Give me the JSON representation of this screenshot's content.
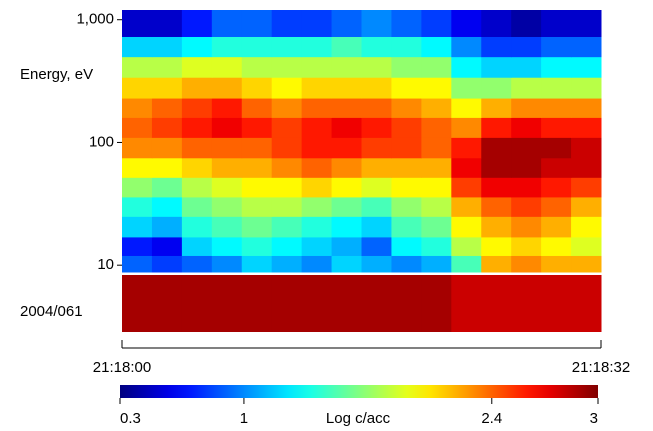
{
  "chart_data": {
    "type": "heatmap",
    "y_label": "Energy, eV",
    "date_label": "2004/061",
    "y_scale": "log",
    "colormap": "jet",
    "xlim": [
      0,
      32
    ],
    "xticks": [
      {
        "value": 0,
        "label": "21:18:00"
      },
      {
        "value": 32,
        "label": "21:18:32"
      }
    ],
    "ylim": [
      8.8,
      1200
    ],
    "yticks": [
      10,
      100,
      {
        "value": 1000,
        "label": "1,000"
      }
    ],
    "x_edges": [
      0,
      2,
      4,
      6,
      8,
      10,
      12,
      14,
      16,
      18,
      20,
      22,
      24,
      26,
      28,
      30,
      32
    ],
    "y_edges": [
      8.8,
      12,
      17,
      25,
      36,
      52,
      75,
      110,
      160,
      230,
      340,
      500,
      730,
      1200
    ],
    "values": [
      [
        0.9,
        0.8,
        0.9,
        1.0,
        1.2,
        1.1,
        1.0,
        1.2,
        1.1,
        1.0,
        1.1,
        1.5,
        2.2,
        2.3,
        2.2,
        2.2
      ],
      [
        0.7,
        0.6,
        1.2,
        1.3,
        1.4,
        1.3,
        1.2,
        1.1,
        0.9,
        1.3,
        1.4,
        1.8,
        2.0,
        2.1,
        2.0,
        1.9
      ],
      [
        1.2,
        1.1,
        1.4,
        1.5,
        1.6,
        1.5,
        1.4,
        1.3,
        1.2,
        1.5,
        1.6,
        2.0,
        2.2,
        2.3,
        2.2,
        2.0
      ],
      [
        1.4,
        1.3,
        1.6,
        1.7,
        1.8,
        1.8,
        1.7,
        1.6,
        1.5,
        1.7,
        1.8,
        2.2,
        2.4,
        2.5,
        2.4,
        2.2
      ],
      [
        1.7,
        1.6,
        1.8,
        1.9,
        2.0,
        2.0,
        2.1,
        2.0,
        1.9,
        2.0,
        2.0,
        2.5,
        2.7,
        2.7,
        2.6,
        2.5
      ],
      [
        2.0,
        2.0,
        2.1,
        2.2,
        2.2,
        2.3,
        2.4,
        2.3,
        2.2,
        2.2,
        2.2,
        2.7,
        2.9,
        2.9,
        2.8,
        2.8
      ],
      [
        2.3,
        2.3,
        2.4,
        2.4,
        2.4,
        2.5,
        2.6,
        2.6,
        2.5,
        2.5,
        2.4,
        2.6,
        2.9,
        2.9,
        2.9,
        2.8
      ],
      [
        2.4,
        2.5,
        2.6,
        2.7,
        2.6,
        2.5,
        2.6,
        2.7,
        2.6,
        2.5,
        2.4,
        2.3,
        2.6,
        2.7,
        2.6,
        2.6
      ],
      [
        2.3,
        2.4,
        2.5,
        2.6,
        2.4,
        2.3,
        2.4,
        2.4,
        2.4,
        2.3,
        2.2,
        2.0,
        2.2,
        2.3,
        2.3,
        2.3
      ],
      [
        2.1,
        2.1,
        2.2,
        2.2,
        2.1,
        2.0,
        2.1,
        2.1,
        2.1,
        2.0,
        2.0,
        1.7,
        1.7,
        1.8,
        1.8,
        1.8
      ],
      [
        1.8,
        1.8,
        1.9,
        1.9,
        1.8,
        1.8,
        1.8,
        1.8,
        1.8,
        1.7,
        1.7,
        1.3,
        1.2,
        1.2,
        1.3,
        1.3
      ],
      [
        1.2,
        1.2,
        1.3,
        1.4,
        1.4,
        1.4,
        1.4,
        1.5,
        1.4,
        1.4,
        1.3,
        1.0,
        0.8,
        0.8,
        0.9,
        0.9
      ],
      [
        0.5,
        0.5,
        0.7,
        0.9,
        0.9,
        0.8,
        0.8,
        0.9,
        1.0,
        0.9,
        0.8,
        0.6,
        0.5,
        0.4,
        0.5,
        0.5
      ]
    ],
    "strip_values": [
      2.9,
      2.9,
      2.9,
      2.9,
      2.9,
      2.9,
      2.9,
      2.9,
      2.9,
      2.9,
      2.9,
      2.8,
      2.8,
      2.8,
      2.8,
      2.8
    ],
    "colorbar": {
      "label": "Log c/acc",
      "lim": [
        0.3,
        3
      ],
      "ticks": [
        0.3,
        1,
        2.4,
        3
      ]
    }
  }
}
